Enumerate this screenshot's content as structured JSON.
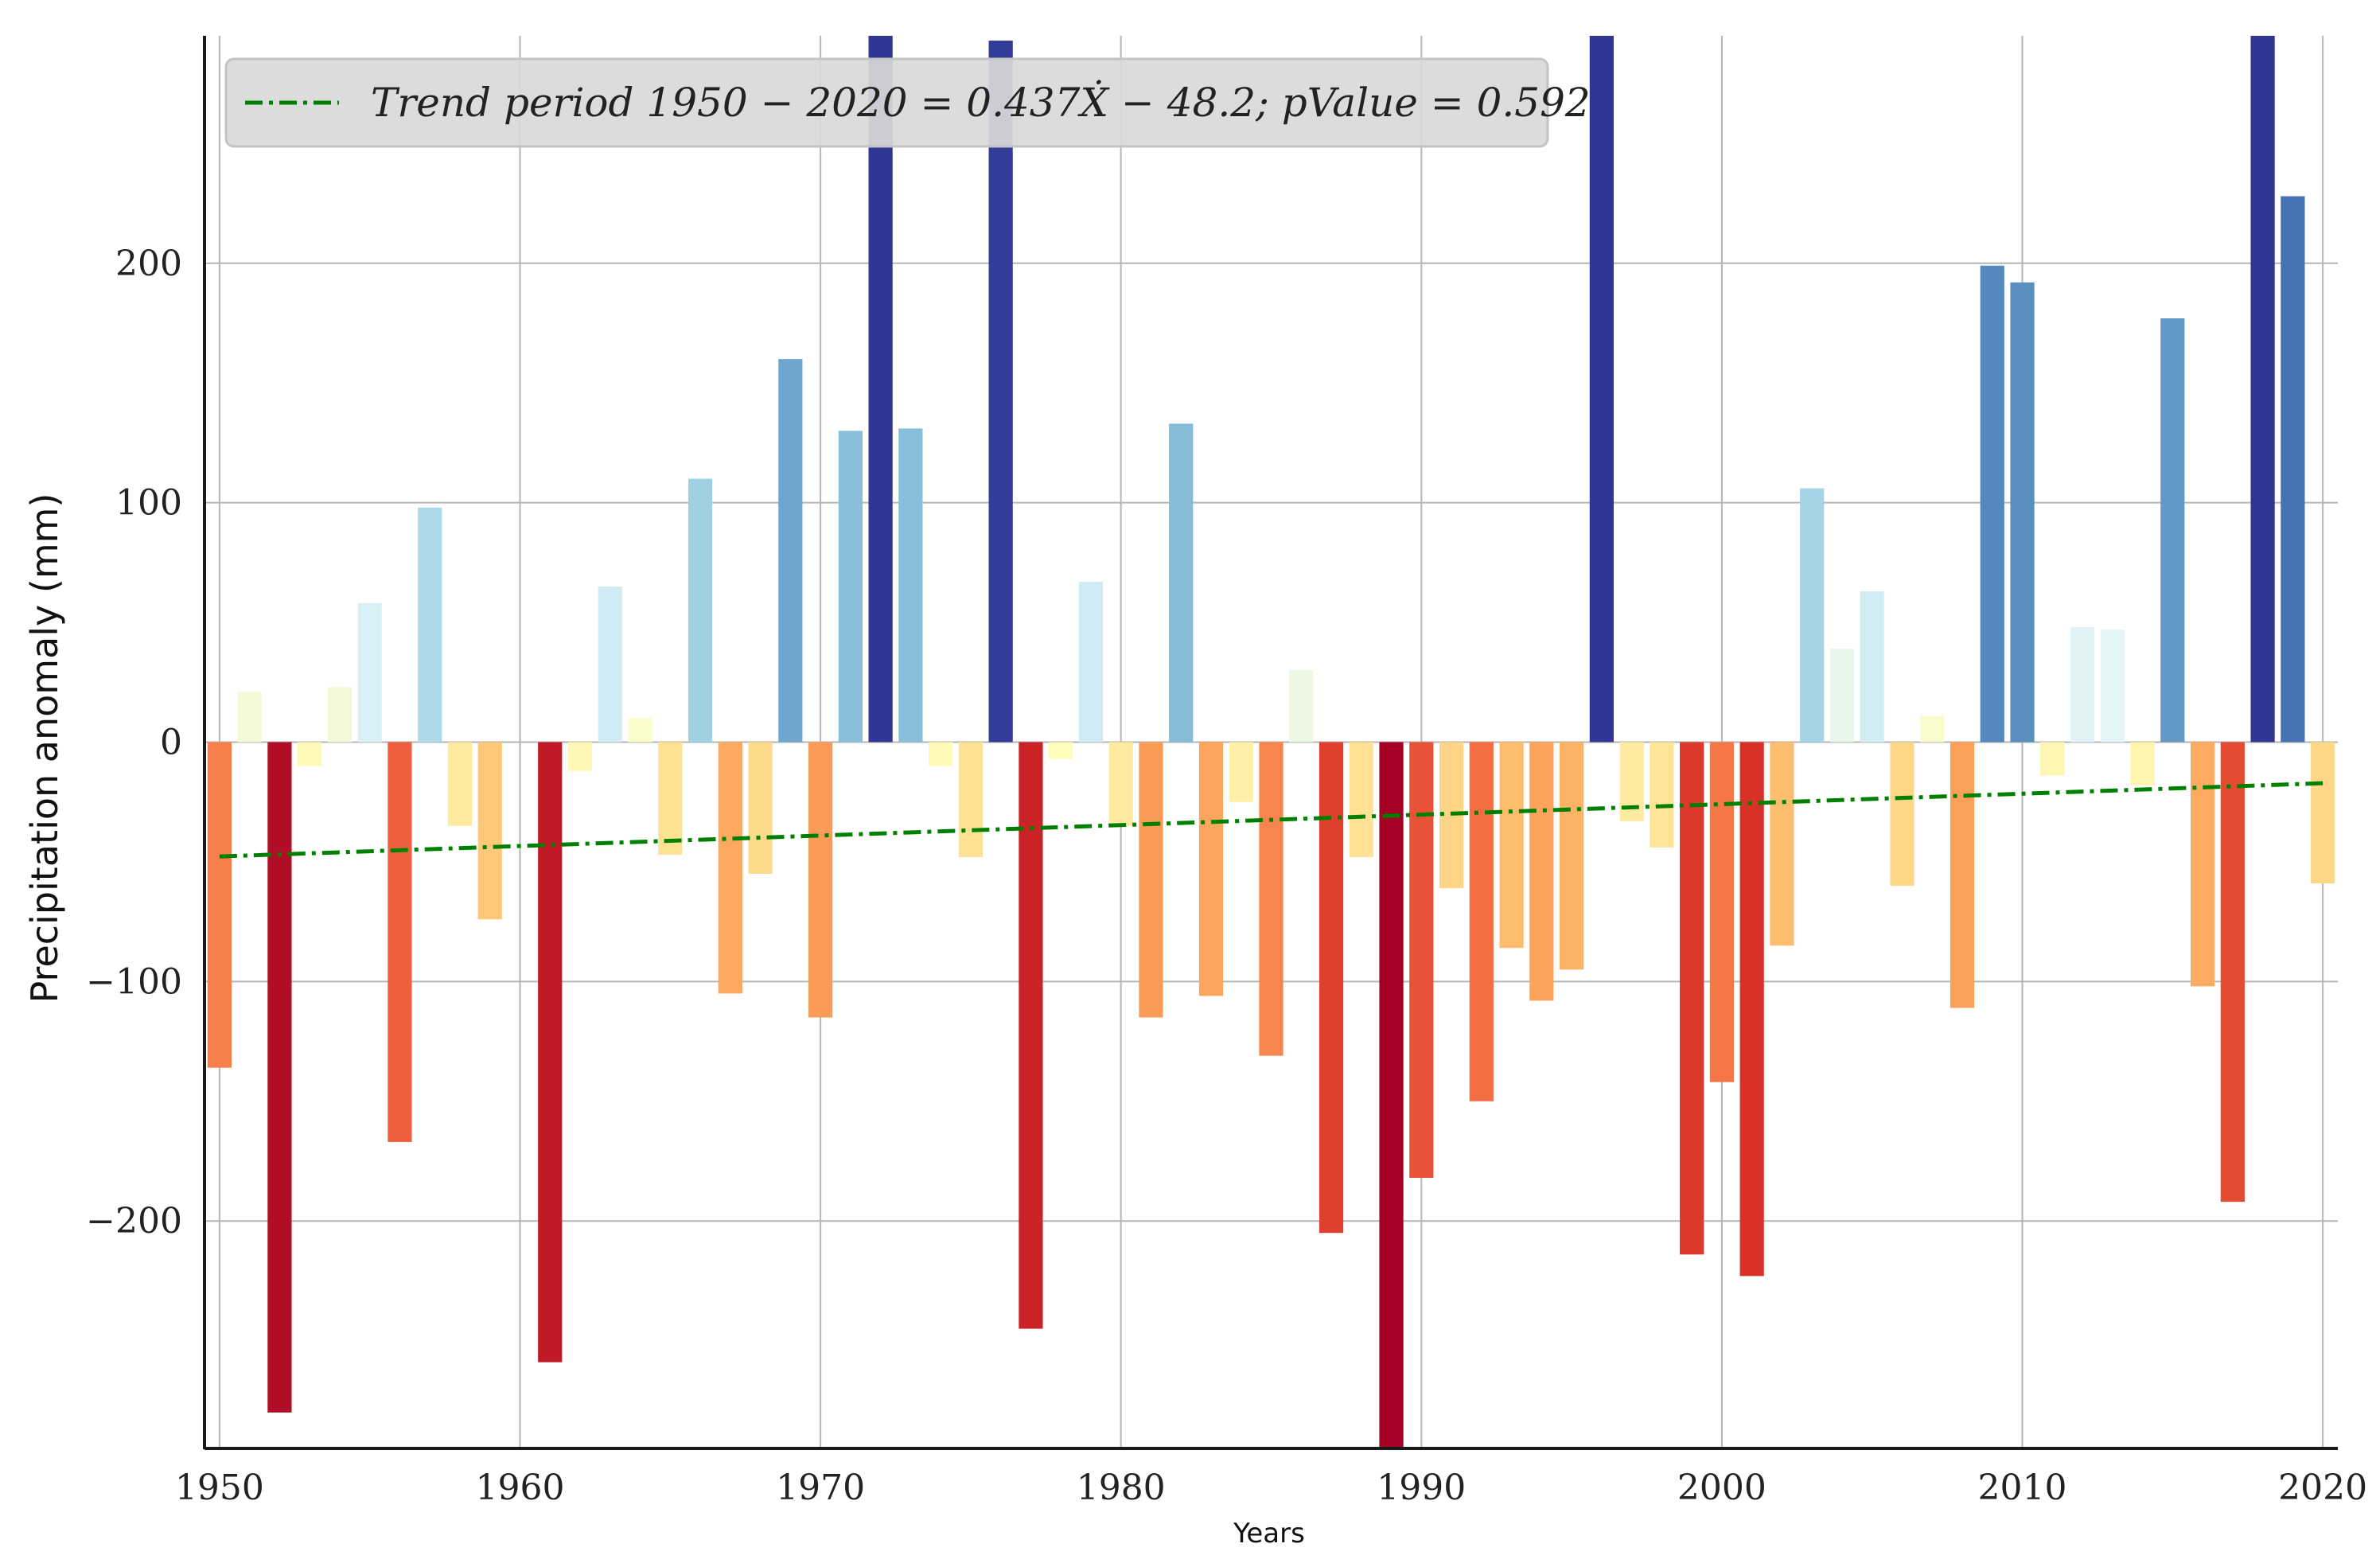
{
  "chart_data": {
    "type": "bar",
    "xlabel": "Years",
    "ylabel": "Precipitation anomaly (mm)",
    "xlim": [
      1949.5,
      2020.5
    ],
    "ylim": [
      -295,
      295
    ],
    "xticks": [
      1950,
      1960,
      1970,
      1980,
      1990,
      2000,
      2010,
      2020
    ],
    "yticks": [
      -200,
      -100,
      0,
      100,
      200
    ],
    "ytick_labels": [
      "−200",
      "−100",
      "0",
      "100",
      "200"
    ],
    "grid": true,
    "legend": {
      "position": "top-left",
      "label": "Trend period 1950 − 2020  = 0.437Ẋ − 48.2; pValue = 0.592",
      "line_color": "#008000",
      "line_style": "dash-dot"
    },
    "trend": {
      "slope": 0.437,
      "intercept": -48.2,
      "from": 1950,
      "to": 2020
    },
    "years": [
      1950,
      1951,
      1952,
      1953,
      1954,
      1955,
      1956,
      1957,
      1958,
      1959,
      1960,
      1961,
      1962,
      1963,
      1964,
      1965,
      1966,
      1967,
      1968,
      1969,
      1970,
      1971,
      1972,
      1973,
      1974,
      1975,
      1976,
      1977,
      1978,
      1979,
      1980,
      1981,
      1982,
      1983,
      1984,
      1985,
      1986,
      1987,
      1988,
      1989,
      1990,
      1991,
      1992,
      1993,
      1994,
      1995,
      1996,
      1997,
      1998,
      1999,
      2000,
      2001,
      2002,
      2003,
      2004,
      2005,
      2006,
      2007,
      2008,
      2009,
      2010,
      2011,
      2012,
      2013,
      2014,
      2015,
      2016,
      2017,
      2018,
      2019,
      2020
    ],
    "values": [
      -136,
      21,
      -280,
      -10,
      23,
      58,
      -167,
      98,
      -35,
      -74,
      0,
      -259,
      -12,
      65,
      10,
      -47,
      110,
      -105,
      -55,
      160,
      -115,
      130,
      300,
      131,
      -10,
      -48,
      293,
      -245,
      -7,
      67,
      -35,
      -115,
      133,
      -106,
      -25,
      -131,
      30,
      -205,
      -48,
      -300,
      -182,
      -61,
      -150,
      -86,
      -108,
      -95,
      300,
      -33,
      -44,
      -214,
      -142,
      -223,
      -85,
      106,
      39,
      63,
      -60,
      11,
      -111,
      199,
      192,
      -14,
      48,
      47,
      -18,
      177,
      -102,
      -192,
      300,
      228,
      -59
    ],
    "color_stops": [
      {
        "v": -300,
        "color": "#a50026"
      },
      {
        "v": -225,
        "color": "#d73027"
      },
      {
        "v": -150,
        "color": "#f46d43"
      },
      {
        "v": -100,
        "color": "#fdae61"
      },
      {
        "v": -50,
        "color": "#fee090"
      },
      {
        "v": 0,
        "color": "#ffffbf"
      },
      {
        "v": 50,
        "color": "#e0f3f8"
      },
      {
        "v": 100,
        "color": "#abd9e9"
      },
      {
        "v": 150,
        "color": "#74add1"
      },
      {
        "v": 225,
        "color": "#4575b4"
      },
      {
        "v": 300,
        "color": "#313695"
      }
    ],
    "colors": {
      "grid": "#b5b5b5",
      "axis": "#1a1a1a",
      "legend_bg": "#d9d9d9",
      "legend_border": "#c4c4c4"
    }
  }
}
